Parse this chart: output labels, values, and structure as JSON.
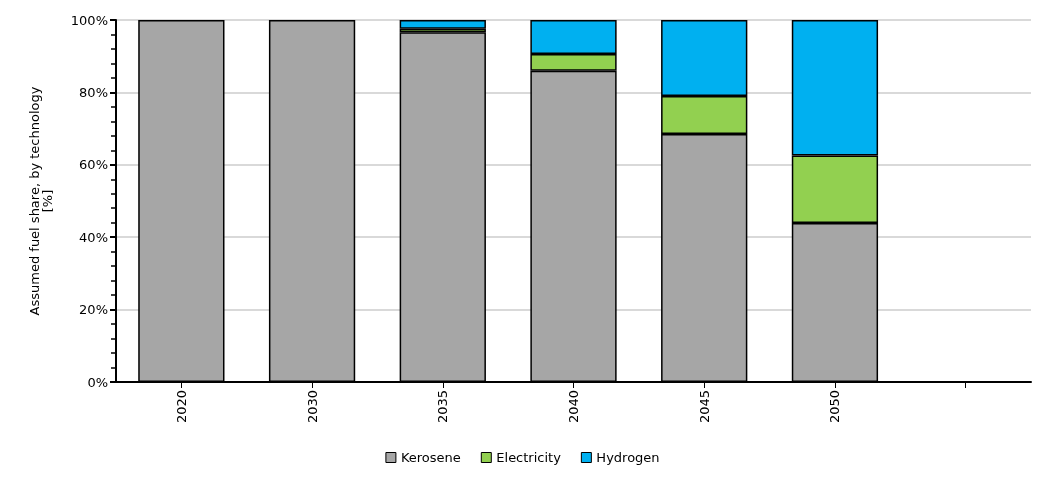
{
  "chart_data": {
    "type": "bar",
    "stacked": true,
    "ylabel": "Assumed fuel share, by technology\n[%]",
    "categories": [
      "2020",
      "2030",
      "2035",
      "2040",
      "2045",
      "2050",
      null
    ],
    "series": [
      {
        "name": "Kerosene",
        "color": "#a6a6a6",
        "values": [
          100,
          100,
          96.6,
          86.0,
          68.5,
          43.9,
          null
        ]
      },
      {
        "name": "Electricity",
        "color": "#92d050",
        "values": [
          0,
          0,
          1.0,
          4.6,
          10.5,
          18.7,
          null
        ]
      },
      {
        "name": "Hydrogen",
        "color": "#00b0f0",
        "values": [
          0,
          0,
          2.4,
          9.4,
          21.0,
          37.4,
          null
        ]
      }
    ],
    "ylim": [
      0,
      100
    ],
    "yticks": [
      {
        "value": 0,
        "label": "0%"
      },
      {
        "value": 20,
        "label": "20%"
      },
      {
        "value": 40,
        "label": "40%"
      },
      {
        "value": 60,
        "label": "60%"
      },
      {
        "value": 80,
        "label": "80%"
      },
      {
        "value": 100,
        "label": "100%"
      }
    ],
    "grid": "y",
    "legend": "bottom"
  }
}
